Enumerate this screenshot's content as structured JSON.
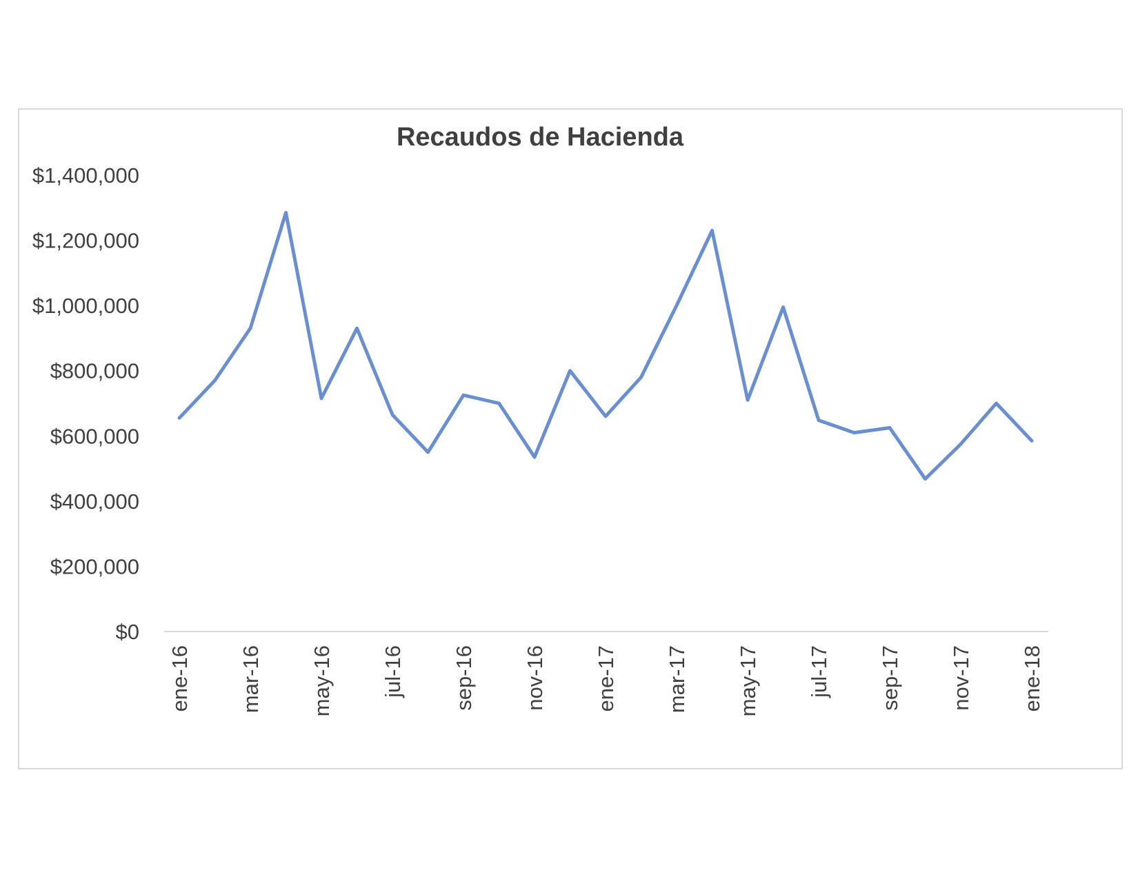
{
  "chart_data": {
    "type": "line",
    "title": "Recaudos de Hacienda",
    "xlabel": "",
    "ylabel": "",
    "ylim": [
      0,
      1400000
    ],
    "yticks": [
      0,
      200000,
      400000,
      600000,
      800000,
      1000000,
      1200000,
      1400000
    ],
    "ytick_labels": [
      "$0",
      "$200,000",
      "$400,000",
      "$600,000",
      "$800,000",
      "$1,000,000",
      "$1,200,000",
      "$1,400,000"
    ],
    "x": [
      "ene-16",
      "feb-16",
      "mar-16",
      "abr-16",
      "may-16",
      "jun-16",
      "jul-16",
      "ago-16",
      "sep-16",
      "oct-16",
      "nov-16",
      "dic-16",
      "ene-17",
      "feb-17",
      "mar-17",
      "abr-17",
      "may-17",
      "jun-17",
      "jul-17",
      "ago-17",
      "sep-17",
      "oct-17",
      "nov-17",
      "dic-17",
      "ene-18"
    ],
    "xtick_labels": [
      "ene-16",
      "mar-16",
      "may-16",
      "jul-16",
      "sep-16",
      "nov-16",
      "ene-17",
      "mar-17",
      "may-17",
      "jul-17",
      "sep-17",
      "nov-17",
      "ene-18"
    ],
    "grid": false,
    "legend": "none",
    "series": [
      {
        "color": "#6a8fd0",
        "values": [
          655000,
          770000,
          930000,
          1285000,
          715000,
          930000,
          665000,
          550000,
          725000,
          700000,
          535000,
          800000,
          660000,
          780000,
          1000000,
          1230000,
          710000,
          995000,
          648000,
          610000,
          625000,
          468000,
          575000,
          700000,
          585000
        ]
      }
    ]
  }
}
